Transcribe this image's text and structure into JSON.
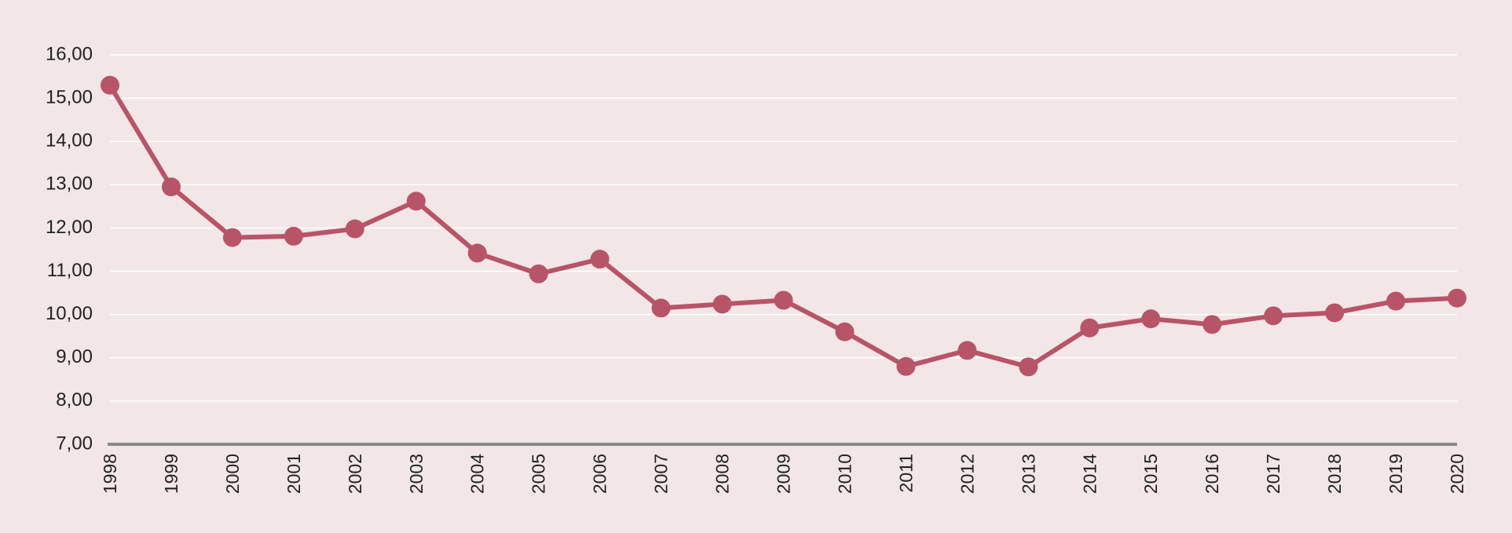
{
  "chart_data": {
    "type": "line",
    "title": "",
    "xlabel": "",
    "ylabel": "",
    "ylim": [
      7,
      16
    ],
    "grid": true,
    "legend": "none",
    "y_ticks": [
      "7,00",
      "8,00",
      "9,00",
      "10,00",
      "11,00",
      "12,00",
      "13,00",
      "14,00",
      "15,00",
      "16,00"
    ],
    "categories": [
      "1998",
      "1999",
      "2000",
      "2001",
      "2002",
      "2003",
      "2004",
      "2005",
      "2006",
      "2007",
      "2008",
      "2009",
      "2010",
      "2011",
      "2012",
      "2013",
      "2014",
      "2015",
      "2016",
      "2017",
      "2018",
      "2019",
      "2020"
    ],
    "series": [
      {
        "values": [
          15.3,
          12.95,
          11.78,
          11.81,
          11.98,
          12.62,
          11.42,
          10.94,
          11.28,
          10.15,
          10.24,
          10.33,
          9.6,
          8.8,
          9.17,
          8.79,
          9.69,
          9.9,
          9.77,
          9.97,
          10.04,
          10.31,
          10.38
        ],
        "color": "#b85468"
      }
    ],
    "colors": {
      "background": "#f3e6e6",
      "grid": "#ffffff",
      "axis": "#8a8a8a",
      "line": "#b85468"
    }
  }
}
